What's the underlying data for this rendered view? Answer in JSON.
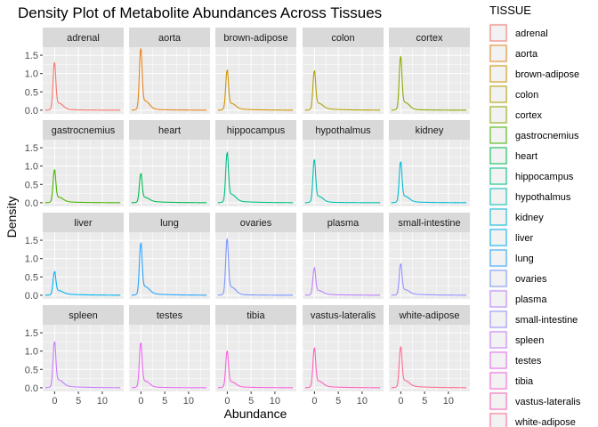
{
  "chart_data": {
    "type": "line",
    "title": "Density Plot of Metabolite Abundances Across Tissues",
    "xlabel": "Abundance",
    "ylabel": "Density",
    "xlim": [
      -2.5,
      14.5
    ],
    "ylim": [
      -0.1,
      1.72
    ],
    "x_ticks": [
      0,
      5,
      10
    ],
    "x_tick_labels": [
      "0",
      "5",
      "10"
    ],
    "y_ticks": [
      0,
      0.5,
      1,
      1.5
    ],
    "y_tick_labels": [
      "0.0",
      "0.5",
      "1.0",
      "1.5"
    ],
    "facet_columns": 5,
    "grid": true,
    "legend": {
      "title": "TISSUE",
      "position": "right"
    },
    "panels": [
      {
        "name": "adrenal",
        "color": "#F8766D",
        "peak": 1.2
      },
      {
        "name": "aorta",
        "color": "#E7851E",
        "peak": 1.55
      },
      {
        "name": "brown-adipose",
        "color": "#D09400",
        "peak": 1.0
      },
      {
        "name": "colon",
        "color": "#B2A100",
        "peak": 0.98
      },
      {
        "name": "cortex",
        "color": "#89AC00",
        "peak": 1.35
      },
      {
        "name": "gastrocnemius",
        "color": "#45B500",
        "peak": 0.82
      },
      {
        "name": "heart",
        "color": "#00BC51",
        "peak": 0.72
      },
      {
        "name": "hippocampus",
        "color": "#00C087",
        "peak": 1.25
      },
      {
        "name": "hypothalmus",
        "color": "#00C0B2",
        "peak": 1.08
      },
      {
        "name": "kidney",
        "color": "#00BCD6",
        "peak": 1.03
      },
      {
        "name": "liver",
        "color": "#00B3F2",
        "peak": 0.58
      },
      {
        "name": "lung",
        "color": "#29A3FF",
        "peak": 1.3
      },
      {
        "name": "ovaries",
        "color": "#7C96FF",
        "peak": 1.42
      },
      {
        "name": "plasma",
        "color": "#BC81FF",
        "peak": 0.68
      },
      {
        "name": "small-intestine",
        "color": "#9590FF",
        "peak": 0.78
      },
      {
        "name": "spleen",
        "color": "#C77CFF",
        "peak": 1.15
      },
      {
        "name": "testes",
        "color": "#E76BF3",
        "peak": 1.13
      },
      {
        "name": "tibia",
        "color": "#FA62DB",
        "peak": 0.92
      },
      {
        "name": "vastus-lateralis",
        "color": "#FF62BC",
        "peak": 0.99
      },
      {
        "name": "white-adipose",
        "color": "#FF6C91",
        "peak": 1.02
      }
    ]
  }
}
